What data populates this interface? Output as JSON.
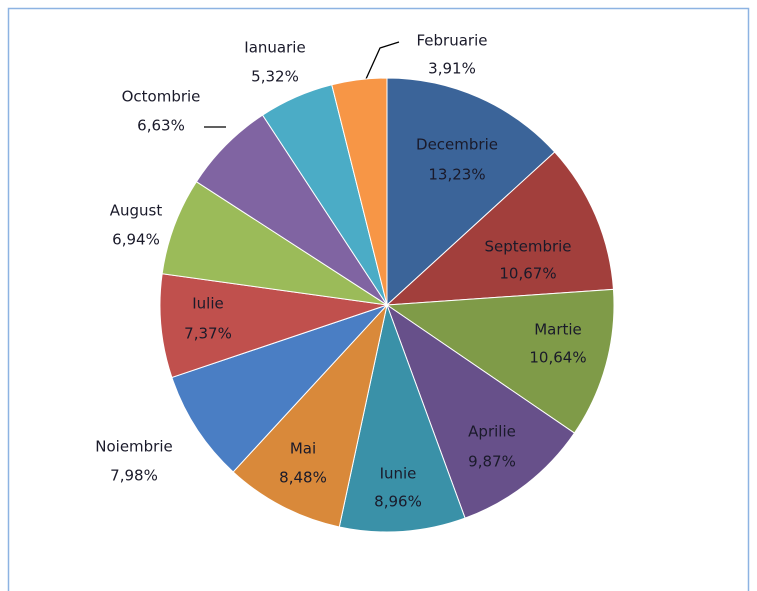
{
  "chart_data": {
    "type": "pie",
    "categories": [
      "Decembrie",
      "Septembrie",
      "Martie",
      "Aprilie",
      "Iunie",
      "Mai",
      "Noiembrie",
      "Iulie",
      "August",
      "Octombrie",
      "Ianuarie",
      "Februarie"
    ],
    "values": [
      13.23,
      10.67,
      10.64,
      9.87,
      8.96,
      8.48,
      7.98,
      7.37,
      6.94,
      6.63,
      5.32,
      3.91
    ],
    "value_labels": [
      "13,23%",
      "10,67%",
      "10,64%",
      "9,87%",
      "8,96%",
      "8,48%",
      "7,98%",
      "7,37%",
      "6,94%",
      "6,63%",
      "5,32%",
      "3,91%"
    ],
    "colors": [
      "#3b6499",
      "#a23f3c",
      "#7f9b48",
      "#67508a",
      "#3a91a8",
      "#d9893a",
      "#4a7ec4",
      "#c0504d",
      "#9bbb59",
      "#8064a2",
      "#4bacc6",
      "#f79646"
    ]
  }
}
